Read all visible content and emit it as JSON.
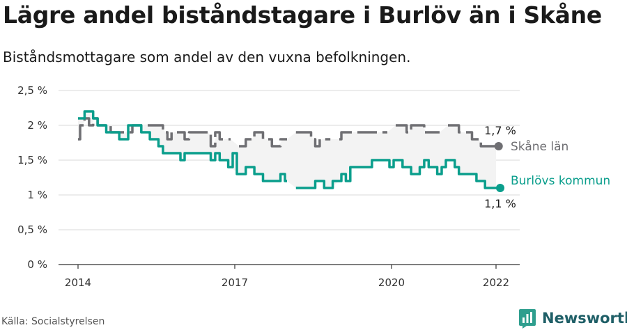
{
  "title": "Lägre andel biståndstagare i Burlöv än i Skåne",
  "subtitle": "Biståndsmottagare som andel av den vuxna befolkningen.",
  "source": "Källa: Socialstyrelsen",
  "brand": {
    "name": "Newsworthy",
    "icon": "newsworthy-logo-icon"
  },
  "chart_data": {
    "type": "line",
    "ylim": [
      0,
      2.5
    ],
    "yticks": [
      0,
      0.5,
      1,
      1.5,
      2,
      2.5
    ],
    "ytick_labels": [
      "0 %",
      "0,5 %",
      "1 %",
      "1,5 %",
      "2 %",
      "2,5 %"
    ],
    "xlim": [
      2014,
      2022.25
    ],
    "xticks": [
      2014,
      2017,
      2020,
      2022
    ],
    "xtick_labels": [
      "2014",
      "2017",
      "2020",
      "2022"
    ],
    "grid": true,
    "series": [
      {
        "name": "Skåne län",
        "color": "#6f6f73",
        "dashed": true,
        "end_label": "1,7 %",
        "points": [
          [
            2014.0,
            1.8
          ],
          [
            2014.08,
            2.0
          ],
          [
            2014.17,
            2.1
          ],
          [
            2014.25,
            2.0
          ],
          [
            2014.33,
            2.1
          ],
          [
            2014.42,
            2.0
          ],
          [
            2014.5,
            2.0
          ],
          [
            2014.58,
            2.0
          ],
          [
            2014.67,
            1.9
          ],
          [
            2014.75,
            1.9
          ],
          [
            2014.83,
            1.9
          ],
          [
            2014.92,
            1.9
          ],
          [
            2015.0,
            1.9
          ],
          [
            2015.08,
            2.0
          ],
          [
            2015.17,
            2.0
          ],
          [
            2015.25,
            2.0
          ],
          [
            2015.33,
            2.0
          ],
          [
            2015.42,
            2.0
          ],
          [
            2015.5,
            2.0
          ],
          [
            2015.58,
            2.0
          ],
          [
            2015.67,
            1.9
          ],
          [
            2015.75,
            1.8
          ],
          [
            2015.83,
            1.9
          ],
          [
            2015.92,
            1.9
          ],
          [
            2016.0,
            1.9
          ],
          [
            2016.08,
            1.8
          ],
          [
            2016.17,
            1.9
          ],
          [
            2016.25,
            1.9
          ],
          [
            2016.33,
            1.9
          ],
          [
            2016.42,
            1.9
          ],
          [
            2016.5,
            1.9
          ],
          [
            2016.58,
            1.7
          ],
          [
            2016.67,
            1.9
          ],
          [
            2016.75,
            1.8
          ],
          [
            2016.83,
            1.8
          ],
          [
            2016.92,
            1.8
          ],
          [
            2017.0,
            null
          ],
          [
            2017.08,
            1.7
          ],
          [
            2017.17,
            1.7
          ],
          [
            2017.25,
            1.8
          ],
          [
            2017.33,
            1.8
          ],
          [
            2017.42,
            1.9
          ],
          [
            2017.5,
            1.9
          ],
          [
            2017.58,
            1.8
          ],
          [
            2017.67,
            1.8
          ],
          [
            2017.75,
            1.7
          ],
          [
            2017.83,
            1.7
          ],
          [
            2017.92,
            1.8
          ],
          [
            2018.0,
            1.8
          ],
          [
            2018.08,
            null
          ],
          [
            2018.17,
            1.9
          ],
          [
            2018.25,
            1.9
          ],
          [
            2018.33,
            1.9
          ],
          [
            2018.42,
            1.9
          ],
          [
            2018.5,
            1.8
          ],
          [
            2018.58,
            1.7
          ],
          [
            2018.67,
            1.8
          ],
          [
            2018.75,
            1.8
          ],
          [
            2018.83,
            1.8
          ],
          [
            2018.92,
            null
          ],
          [
            2019.0,
            1.8
          ],
          [
            2019.08,
            1.9
          ],
          [
            2019.17,
            1.9
          ],
          [
            2019.25,
            1.9
          ],
          [
            2019.33,
            1.9
          ],
          [
            2019.42,
            1.9
          ],
          [
            2019.5,
            1.9
          ],
          [
            2019.58,
            1.9
          ],
          [
            2019.67,
            1.9
          ],
          [
            2019.75,
            1.9
          ],
          [
            2019.83,
            1.9
          ],
          [
            2019.92,
            1.9
          ],
          [
            2020.0,
            null
          ],
          [
            2020.08,
            2.0
          ],
          [
            2020.17,
            2.0
          ],
          [
            2020.25,
            2.0
          ],
          [
            2020.33,
            1.9
          ],
          [
            2020.42,
            2.0
          ],
          [
            2020.5,
            2.0
          ],
          [
            2020.58,
            2.0
          ],
          [
            2020.67,
            1.9
          ],
          [
            2020.75,
            1.9
          ],
          [
            2020.83,
            1.9
          ],
          [
            2020.92,
            1.9
          ],
          [
            2021.0,
            null
          ],
          [
            2021.08,
            2.0
          ],
          [
            2021.17,
            2.0
          ],
          [
            2021.25,
            2.0
          ],
          [
            2021.33,
            1.9
          ],
          [
            2021.42,
            1.9
          ],
          [
            2021.5,
            1.9
          ],
          [
            2021.58,
            1.8
          ],
          [
            2021.67,
            1.8
          ],
          [
            2021.75,
            1.7
          ],
          [
            2021.83,
            1.7
          ],
          [
            2021.92,
            1.7
          ],
          [
            2022.0,
            1.7
          ]
        ]
      },
      {
        "name": "Burlövs kommun",
        "color": "#0a9e8c",
        "dashed": false,
        "end_label": "1,1 %",
        "points": [
          [
            2014.0,
            2.1
          ],
          [
            2014.08,
            2.1
          ],
          [
            2014.17,
            2.2
          ],
          [
            2014.25,
            2.2
          ],
          [
            2014.33,
            2.1
          ],
          [
            2014.42,
            2.0
          ],
          [
            2014.5,
            2.0
          ],
          [
            2014.58,
            1.9
          ],
          [
            2014.67,
            1.9
          ],
          [
            2014.75,
            1.9
          ],
          [
            2014.83,
            1.8
          ],
          [
            2014.92,
            1.8
          ],
          [
            2015.0,
            2.0
          ],
          [
            2015.08,
            2.0
          ],
          [
            2015.17,
            2.0
          ],
          [
            2015.25,
            1.9
          ],
          [
            2015.33,
            1.9
          ],
          [
            2015.42,
            1.8
          ],
          [
            2015.5,
            1.8
          ],
          [
            2015.58,
            1.7
          ],
          [
            2015.67,
            1.6
          ],
          [
            2015.75,
            1.6
          ],
          [
            2015.83,
            1.6
          ],
          [
            2015.92,
            1.6
          ],
          [
            2016.0,
            1.5
          ],
          [
            2016.08,
            1.6
          ],
          [
            2016.17,
            1.6
          ],
          [
            2016.25,
            1.6
          ],
          [
            2016.33,
            1.6
          ],
          [
            2016.42,
            1.6
          ],
          [
            2016.5,
            1.6
          ],
          [
            2016.58,
            1.5
          ],
          [
            2016.67,
            1.6
          ],
          [
            2016.75,
            1.5
          ],
          [
            2016.83,
            1.5
          ],
          [
            2016.92,
            1.4
          ],
          [
            2017.0,
            1.6
          ],
          [
            2017.08,
            1.3
          ],
          [
            2017.17,
            1.3
          ],
          [
            2017.25,
            1.4
          ],
          [
            2017.33,
            1.4
          ],
          [
            2017.42,
            1.3
          ],
          [
            2017.5,
            1.3
          ],
          [
            2017.58,
            1.2
          ],
          [
            2017.67,
            1.2
          ],
          [
            2017.75,
            1.2
          ],
          [
            2017.83,
            1.2
          ],
          [
            2017.92,
            1.3
          ],
          [
            2018.0,
            1.2
          ],
          [
            2018.08,
            null
          ],
          [
            2018.17,
            1.1
          ],
          [
            2018.25,
            1.1
          ],
          [
            2018.33,
            1.1
          ],
          [
            2018.42,
            1.1
          ],
          [
            2018.5,
            1.1
          ],
          [
            2018.58,
            1.2
          ],
          [
            2018.67,
            1.2
          ],
          [
            2018.75,
            1.1
          ],
          [
            2018.83,
            1.1
          ],
          [
            2018.92,
            1.2
          ],
          [
            2019.0,
            1.2
          ],
          [
            2019.08,
            1.3
          ],
          [
            2019.17,
            1.2
          ],
          [
            2019.25,
            1.4
          ],
          [
            2019.33,
            1.4
          ],
          [
            2019.42,
            1.4
          ],
          [
            2019.5,
            1.4
          ],
          [
            2019.58,
            1.4
          ],
          [
            2019.67,
            1.5
          ],
          [
            2019.75,
            1.5
          ],
          [
            2019.83,
            1.5
          ],
          [
            2019.92,
            1.5
          ],
          [
            2020.0,
            1.4
          ],
          [
            2020.08,
            1.5
          ],
          [
            2020.17,
            1.5
          ],
          [
            2020.25,
            1.4
          ],
          [
            2020.33,
            1.4
          ],
          [
            2020.42,
            1.3
          ],
          [
            2020.5,
            1.3
          ],
          [
            2020.58,
            1.4
          ],
          [
            2020.67,
            1.5
          ],
          [
            2020.75,
            1.4
          ],
          [
            2020.83,
            1.4
          ],
          [
            2020.92,
            1.3
          ],
          [
            2021.0,
            1.4
          ],
          [
            2021.08,
            1.5
          ],
          [
            2021.17,
            1.5
          ],
          [
            2021.25,
            1.4
          ],
          [
            2021.33,
            1.3
          ],
          [
            2021.42,
            1.3
          ],
          [
            2021.5,
            1.3
          ],
          [
            2021.58,
            1.3
          ],
          [
            2021.67,
            1.2
          ],
          [
            2021.75,
            1.2
          ],
          [
            2021.83,
            1.1
          ],
          [
            2021.92,
            1.1
          ],
          [
            2022.0,
            1.1
          ],
          [
            2022.08,
            1.1
          ]
        ]
      }
    ]
  }
}
